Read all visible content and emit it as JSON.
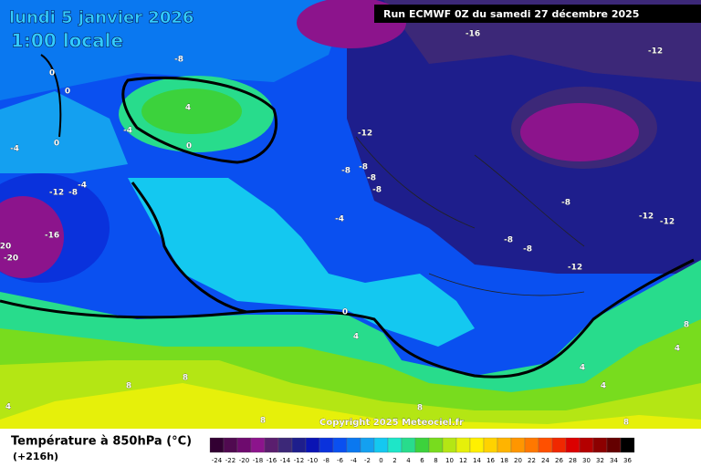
{
  "header": {
    "date": "lundi 5 janvier 2026",
    "time": "1:00 locale",
    "run": "Run ECMWF 0Z du samedi 27 décembre 2025"
  },
  "map": {
    "contour_labels": [
      -16,
      -12,
      -8,
      0,
      0,
      4,
      -4,
      0,
      0,
      -4,
      -12,
      -8,
      -8,
      -8,
      -8,
      -12,
      -8,
      -4,
      -16,
      20,
      -20,
      -4,
      -8,
      -12,
      -12,
      -8,
      -8,
      -12,
      0,
      4,
      8,
      8,
      4,
      8,
      8,
      8,
      4,
      4,
      8,
      4
    ]
  },
  "footer": {
    "title": "Température à 850hPa (°C)",
    "lead": "(+216h)",
    "copyright": "Copyright 2025 Meteociel.fr"
  },
  "legend": {
    "values": [
      -24,
      -22,
      -20,
      -18,
      -16,
      -14,
      -12,
      -10,
      -8,
      -6,
      -4,
      -2,
      0,
      2,
      4,
      6,
      8,
      10,
      12,
      14,
      16,
      18,
      20,
      22,
      24,
      26,
      28,
      30,
      32,
      34,
      36
    ],
    "colors": [
      "#320032",
      "#500a50",
      "#6e0a6e",
      "#8c148c",
      "#5a1e6e",
      "#3c2878",
      "#1e1e8c",
      "#0a14b4",
      "#0a32dc",
      "#0a50f0",
      "#0a78f0",
      "#14a0f0",
      "#14c8f0",
      "#1ee6c8",
      "#28dc8c",
      "#3cd23c",
      "#78dc1e",
      "#b4e614",
      "#e6f00a",
      "#fff000",
      "#ffd200",
      "#ffb400",
      "#ff9600",
      "#ff7800",
      "#ff5000",
      "#f02800",
      "#dc0000",
      "#b40000",
      "#8c0000",
      "#640000",
      "#000000"
    ]
  }
}
